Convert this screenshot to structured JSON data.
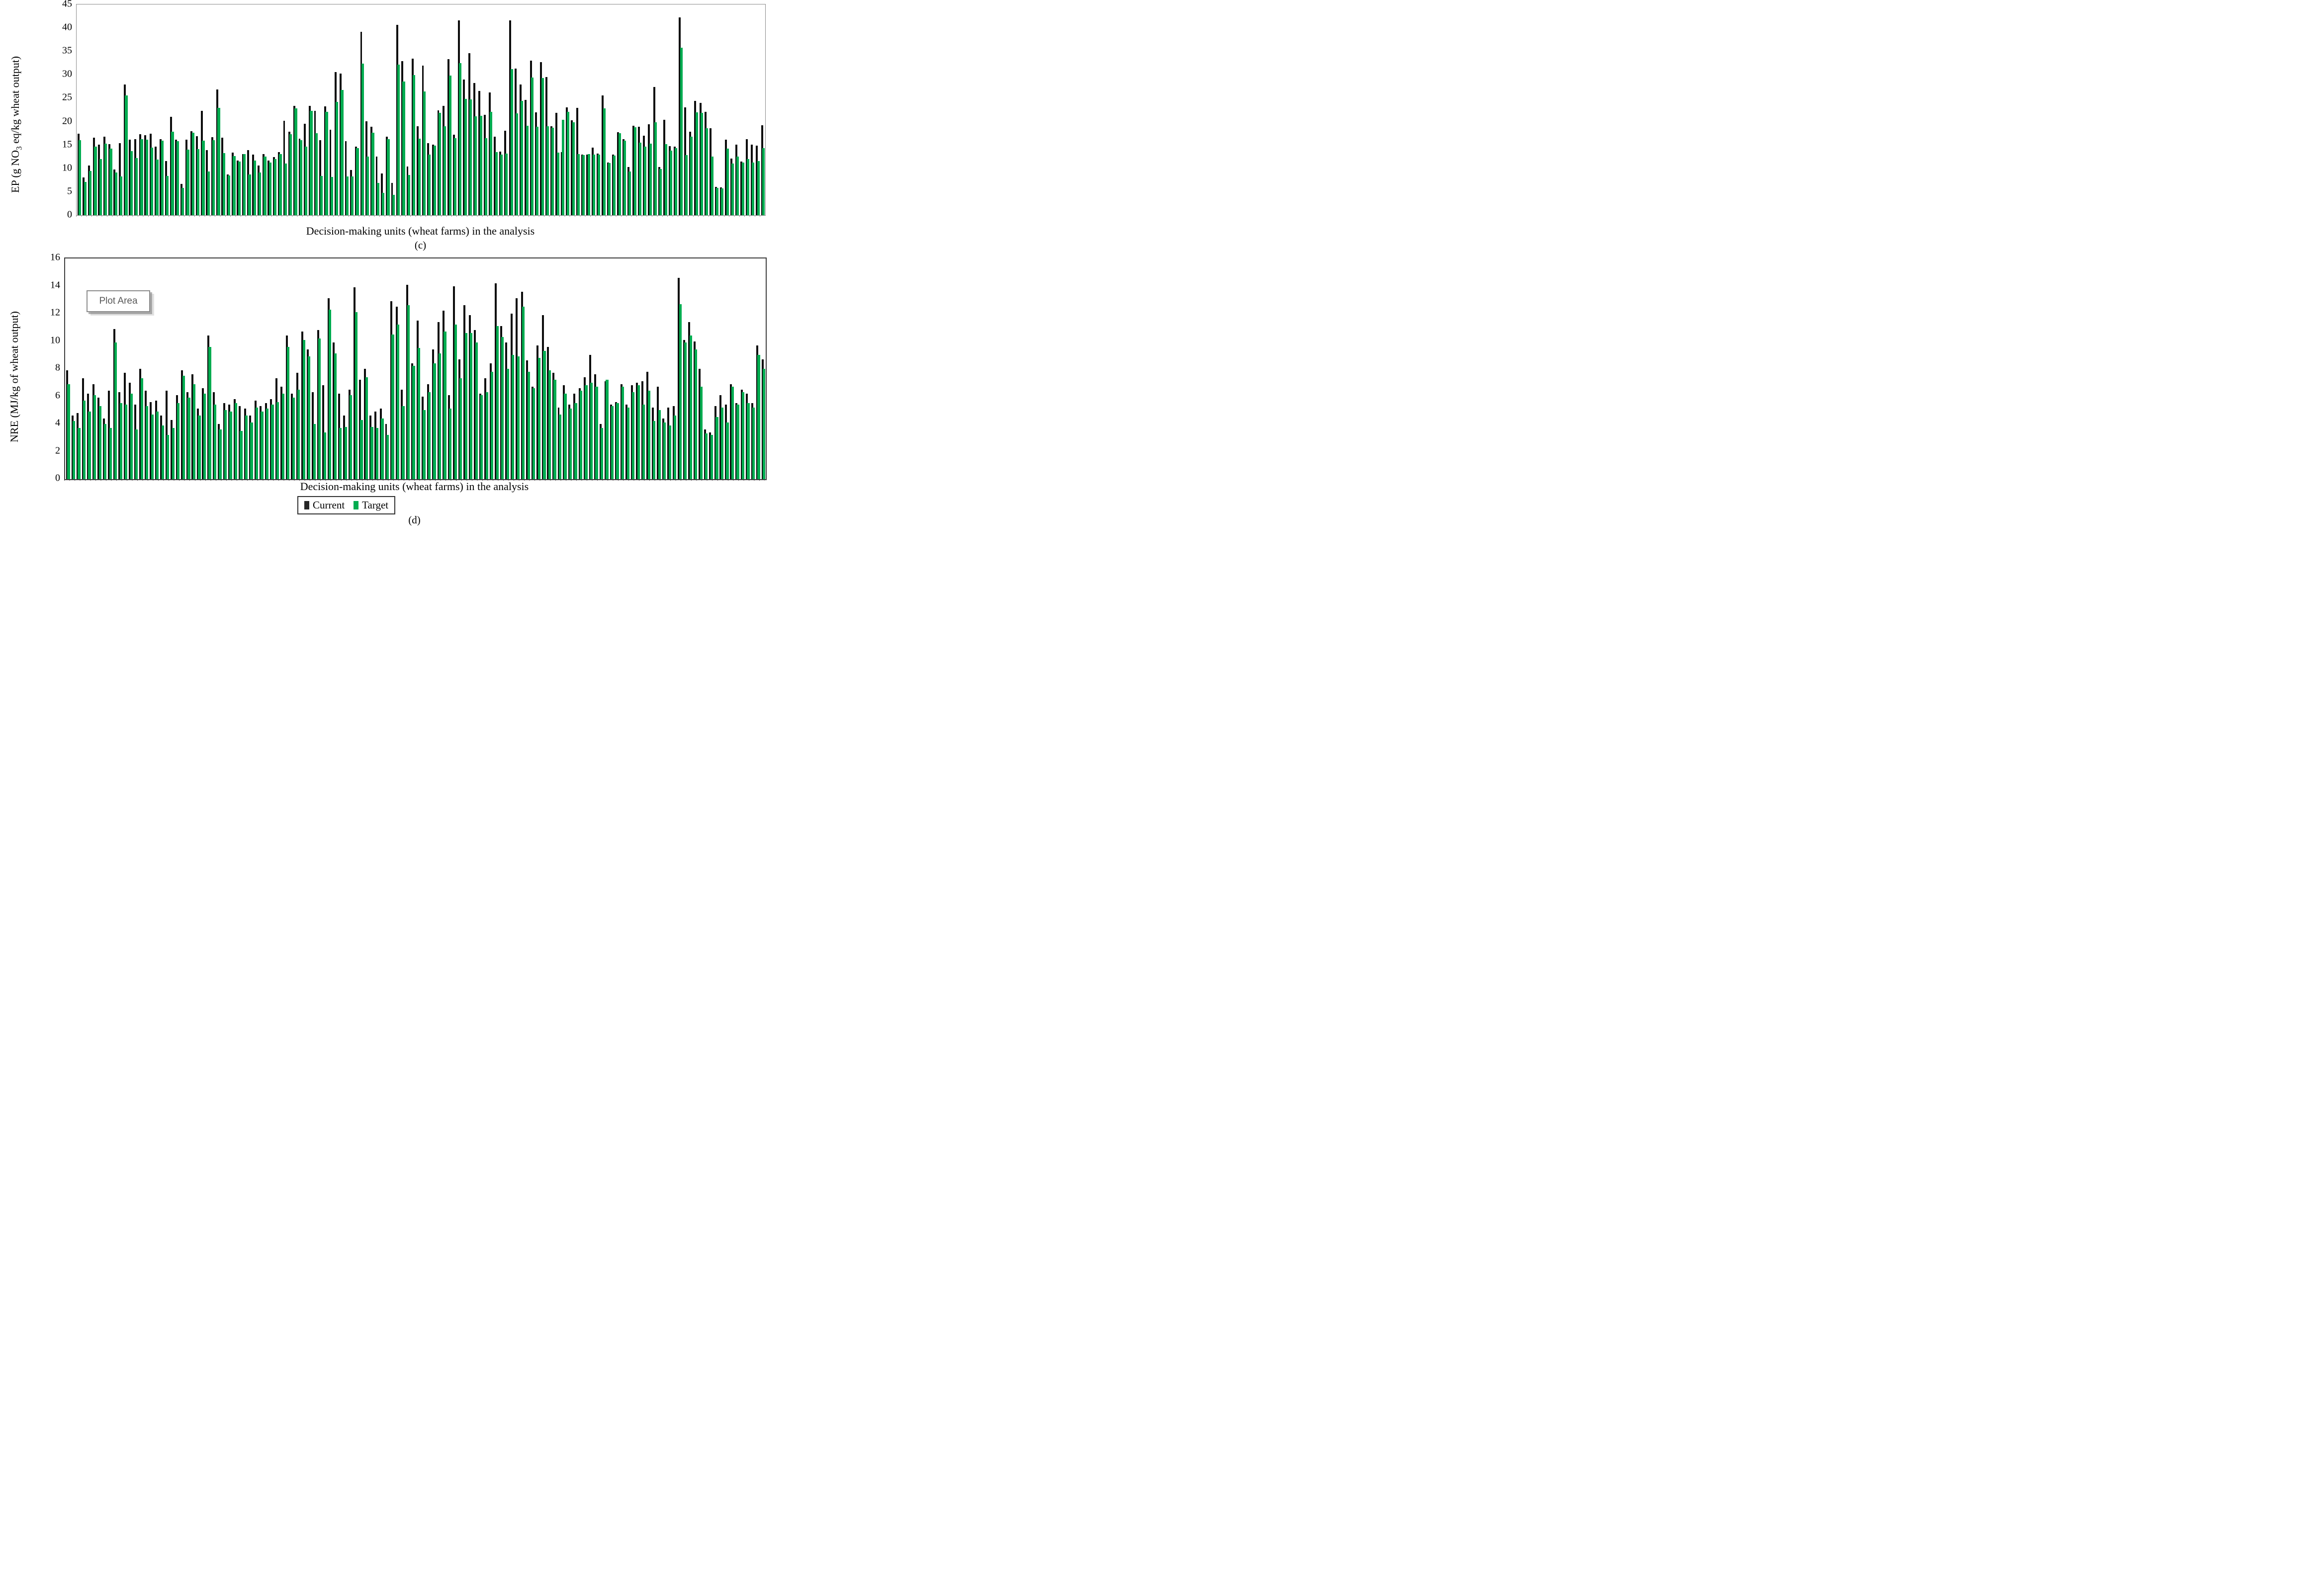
{
  "tooltip": {
    "plot_area_label": "Plot Area"
  },
  "legend": {
    "items": [
      {
        "label": "Current",
        "color": "#262626"
      },
      {
        "label": "Target",
        "color": "#00AC50"
      }
    ]
  },
  "chart_data": [
    {
      "type": "bar",
      "panel": "c",
      "caption": "(c)",
      "xlabel": "Decision-making units (wheat farms) in the analysis",
      "ylabel_prefix": "EP (g NO",
      "ylabel_sub": "3",
      "ylabel_suffix": " eq/kg wheat output)",
      "ylim": [
        0,
        45
      ],
      "yticks": [
        0,
        5,
        10,
        15,
        20,
        25,
        30,
        35,
        40,
        45
      ],
      "grid": false,
      "legend_position": "none",
      "n_units": 134,
      "series": [
        {
          "name": "Current",
          "color": "#0d0d0d",
          "values": [
            17.4,
            8.1,
            10.6,
            16.6,
            15.1,
            16.8,
            15.2,
            9.8,
            15.4,
            27.9,
            16.1,
            16.2,
            17.3,
            17.1,
            17.4,
            14.7,
            16.2,
            11.6,
            21.0,
            16.1,
            6.7,
            16.1,
            17.9,
            16.9,
            22.3,
            13.9,
            16.7,
            26.9,
            16.6,
            8.7,
            13.4,
            11.7,
            13.1,
            13.9,
            12.9,
            10.6,
            13.1,
            11.7,
            12.4,
            13.5,
            20.2,
            17.8,
            23.4,
            16.3,
            19.5,
            23.4,
            22.3,
            16.0,
            23.2,
            18.3,
            30.6,
            30.2,
            15.8,
            9.7,
            14.6,
            39.2,
            20.1,
            18.9,
            12.5,
            8.9,
            16.8,
            6.9,
            40.7,
            32.9,
            10.4,
            33.4,
            19.0,
            32.0,
            15.4,
            15.1,
            22.4,
            23.4,
            33.3,
            17.2,
            41.6,
            29.0,
            34.6,
            28.2,
            26.5,
            21.4,
            26.2,
            16.8,
            13.6,
            18.0,
            41.6,
            31.3,
            27.9,
            24.6,
            33.0,
            22.0,
            32.7,
            29.5,
            19.0,
            21.9,
            13.5,
            23.0,
            20.3,
            22.9,
            13.0,
            12.9,
            14.4,
            13.2,
            25.6,
            11.2,
            13.0,
            17.7,
            16.2,
            10.3,
            19.1,
            18.9,
            17.0,
            19.4,
            27.4,
            10.3,
            20.4,
            14.8,
            14.6,
            42.2,
            23.0,
            17.8,
            24.4,
            24.0,
            22.1,
            18.6,
            6.0,
            5.9,
            16.1,
            12.1,
            15.1,
            11.5,
            16.2,
            15.1,
            14.9,
            19.2
          ]
        },
        {
          "name": "Target",
          "color": "#00AC50",
          "values": [
            16.0,
            7.1,
            9.4,
            14.7,
            12.0,
            15.3,
            14.2,
            9.1,
            8.3,
            25.6,
            13.7,
            12.2,
            16.2,
            16.1,
            14.4,
            11.9,
            15.9,
            8.4,
            17.8,
            15.8,
            5.8,
            14.0,
            17.6,
            14.1,
            15.9,
            9.3,
            16.0,
            22.9,
            13.3,
            8.5,
            12.6,
            11.5,
            13.1,
            8.7,
            11.7,
            9.1,
            12.5,
            11.3,
            12.0,
            13.1,
            11.0,
            17.3,
            22.8,
            16.0,
            14.6,
            22.3,
            17.5,
            8.4,
            22.1,
            8.2,
            24.2,
            26.7,
            8.3,
            8.3,
            14.3,
            32.4,
            12.5,
            17.6,
            6.9,
            4.8,
            16.2,
            4.4,
            32.2,
            28.5,
            8.6,
            29.9,
            16.3,
            26.4,
            12.9,
            14.9,
            21.9,
            19.0,
            29.8,
            16.4,
            32.5,
            24.8,
            24.7,
            21.1,
            21.2,
            16.5,
            22.1,
            13.5,
            12.9,
            13.2,
            31.2,
            21.8,
            24.4,
            19.1,
            29.4,
            18.9,
            29.3,
            19.0,
            18.7,
            13.4,
            20.4,
            22.1,
            19.8,
            13.1,
            12.8,
            13.1,
            12.9,
            13.0,
            22.8,
            11.1,
            12.7,
            17.5,
            15.9,
            9.3,
            18.8,
            15.5,
            14.7,
            15.3,
            19.9,
            9.9,
            15.2,
            13.8,
            14.3,
            35.8,
            12.8,
            16.8,
            22.0,
            21.9,
            18.6,
            12.5,
            5.8,
            5.7,
            14.2,
            11.0,
            12.5,
            11.2,
            12.0,
            11.3,
            11.6,
            14.3
          ]
        }
      ]
    },
    {
      "type": "bar",
      "panel": "d",
      "caption": "(d)",
      "xlabel": "Decision-making units (wheat farms) in the analysis",
      "ylabel_prefix": "NRE (MJ/kg of wheat output)",
      "ylabel_sub": "",
      "ylabel_suffix": "",
      "ylim": [
        0,
        16
      ],
      "yticks": [
        0,
        2,
        4,
        6,
        8,
        10,
        12,
        14,
        16
      ],
      "grid": false,
      "legend_position": "bottom",
      "n_units": 134,
      "series": [
        {
          "name": "Current",
          "color": "#0d0d0d",
          "values": [
            7.9,
            4.6,
            4.8,
            7.3,
            6.2,
            6.9,
            5.9,
            4.4,
            6.4,
            10.9,
            6.3,
            7.7,
            7.0,
            5.4,
            8.0,
            6.4,
            5.6,
            5.7,
            4.6,
            6.4,
            4.3,
            6.1,
            7.9,
            6.3,
            7.6,
            5.1,
            6.6,
            10.4,
            6.3,
            4.0,
            5.5,
            5.4,
            5.8,
            5.3,
            5.1,
            4.6,
            5.7,
            5.3,
            5.5,
            5.8,
            7.3,
            6.7,
            10.4,
            6.2,
            7.7,
            10.7,
            9.4,
            6.3,
            10.8,
            6.8,
            13.1,
            9.9,
            6.2,
            4.6,
            6.5,
            13.9,
            7.2,
            8.0,
            4.6,
            4.9,
            5.1,
            4.0,
            12.9,
            12.5,
            6.5,
            14.1,
            8.4,
            11.5,
            6.0,
            6.9,
            9.4,
            11.4,
            12.2,
            6.1,
            14.0,
            8.7,
            12.6,
            11.9,
            10.8,
            6.2,
            7.3,
            8.4,
            14.2,
            11.1,
            9.9,
            12.0,
            13.1,
            13.6,
            8.6,
            6.7,
            9.7,
            11.9,
            9.6,
            7.7,
            5.2,
            6.8,
            5.4,
            6.2,
            6.6,
            7.4,
            9.0,
            7.6,
            4.0,
            7.1,
            5.4,
            5.6,
            6.9,
            5.4,
            6.8,
            7.0,
            7.1,
            7.8,
            5.2,
            6.7,
            4.4,
            5.2,
            5.3,
            14.6,
            10.1,
            11.4,
            10.0,
            8.0,
            3.6,
            3.4,
            5.3,
            6.1,
            5.4,
            6.9,
            5.5,
            6.5,
            6.2,
            5.5,
            9.7,
            8.7
          ]
        },
        {
          "name": "Target",
          "color": "#00AC50",
          "values": [
            6.9,
            4.2,
            3.7,
            5.7,
            4.9,
            6.1,
            5.3,
            4.0,
            3.7,
            9.9,
            5.5,
            5.4,
            6.2,
            3.6,
            7.3,
            5.3,
            4.7,
            4.9,
            3.9,
            3.2,
            3.7,
            5.5,
            7.5,
            5.9,
            6.9,
            4.6,
            6.2,
            9.6,
            5.4,
            3.6,
            5.0,
            4.9,
            5.5,
            3.5,
            4.6,
            4.1,
            5.2,
            4.9,
            5.1,
            5.4,
            5.6,
            6.2,
            9.6,
            5.9,
            6.5,
            10.1,
            8.9,
            4.0,
            10.2,
            3.4,
            12.3,
            9.1,
            3.7,
            3.8,
            6.1,
            12.1,
            4.3,
            7.4,
            3.8,
            3.7,
            4.4,
            3.2,
            10.5,
            11.2,
            5.3,
            12.6,
            8.2,
            9.5,
            5.0,
            6.3,
            8.4,
            9.1,
            10.7,
            5.1,
            11.2,
            7.3,
            10.6,
            10.6,
            9.9,
            6.1,
            6.3,
            7.8,
            11.1,
            10.3,
            8.0,
            9.0,
            8.9,
            12.5,
            7.8,
            6.6,
            8.8,
            9.3,
            7.9,
            7.2,
            4.7,
            6.2,
            5.1,
            5.5,
            6.4,
            6.8,
            7.0,
            6.7,
            3.7,
            7.2,
            5.3,
            5.5,
            6.7,
            5.2,
            6.3,
            6.8,
            5.4,
            6.4,
            4.2,
            5.0,
            4.1,
            3.9,
            4.6,
            12.7,
            9.9,
            10.4,
            9.4,
            6.7,
            3.3,
            3.2,
            4.5,
            5.2,
            4.1,
            6.7,
            5.4,
            6.3,
            5.5,
            5.2,
            9.0,
            8.0
          ]
        }
      ]
    }
  ]
}
